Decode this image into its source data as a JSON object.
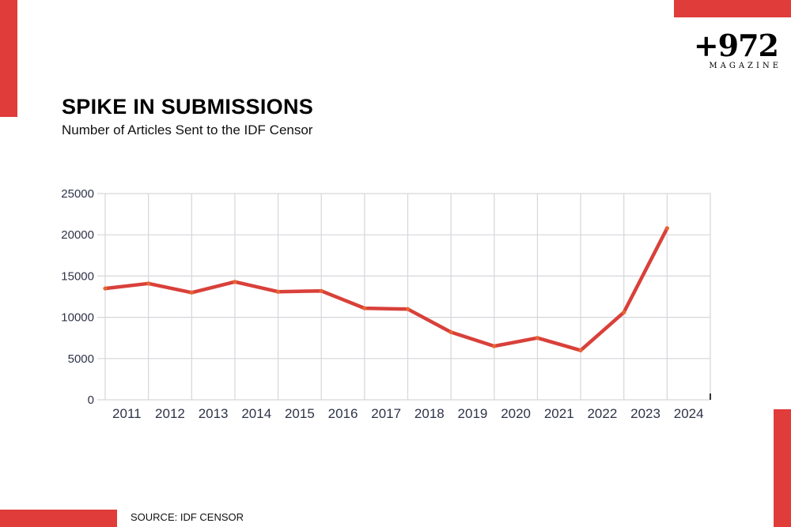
{
  "header": {
    "title": "SPIKE IN SUBMISSIONS",
    "subtitle": "Number of Articles Sent to the IDF Censor"
  },
  "logo": {
    "mark": "+972",
    "sub": "MAGAZINE"
  },
  "footer": {
    "source": "SOURCE: IDF CENSOR"
  },
  "colors": {
    "accent": "#df3c3a",
    "line": "#d9403a",
    "grid": "#d6d6dc",
    "axis_text": "#2e3348"
  },
  "chart_data": {
    "type": "line",
    "title": "SPIKE IN SUBMISSIONS",
    "subtitle": "Number of Articles Sent to the IDF Censor",
    "xlabel": "",
    "ylabel": "",
    "categories": [
      "2011",
      "2012",
      "2013",
      "2014",
      "2015",
      "2016",
      "2017",
      "2018",
      "2019",
      "2020",
      "2021",
      "2022",
      "2023",
      "2024"
    ],
    "series": [
      {
        "values": [
          13500,
          14100,
          13000,
          14300,
          13100,
          13200,
          11100,
          11000,
          8200,
          6500,
          7500,
          6000,
          10600,
          20800
        ],
        "color": "#d9403a"
      }
    ],
    "ylim": [
      0,
      25000
    ],
    "yticks": [
      "25000",
      "20000",
      "15000",
      "10000",
      "5000",
      "0"
    ],
    "grid": true,
    "legend": "none"
  }
}
